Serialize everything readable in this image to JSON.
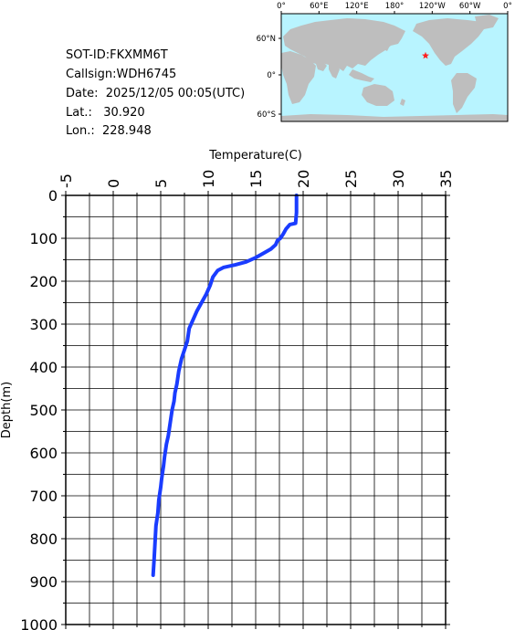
{
  "info": {
    "sot_id": "SOT-ID:FKXMM6T",
    "callsign": "Callsign:WDH6745",
    "date": "Date:  2025/12/05 00:05(UTC)",
    "lat": "Lat.:   30.920",
    "lon": "Lon.:  228.948"
  },
  "map": {
    "top_labels": [
      "0°",
      "60°E",
      "120°E",
      "180°",
      "120°W",
      "60°W",
      "0°"
    ],
    "left_labels": [
      "60°N",
      "0°",
      "60°S"
    ],
    "ocean_color": "#b8f4ff",
    "land_color": "#bebebe",
    "marker_color": "#ff2020",
    "marker_icon": "star-icon"
  },
  "chart_data": {
    "type": "line",
    "xlabel": "Temperature(C)",
    "ylabel": "Depth(m)",
    "xlim": [
      -5,
      35
    ],
    "ylim": [
      1000,
      0
    ],
    "x_ticks": [
      "-5",
      "0",
      "5",
      "10",
      "15",
      "20",
      "25",
      "30",
      "35"
    ],
    "y_ticks": [
      "0",
      "100",
      "200",
      "300",
      "400",
      "500",
      "600",
      "700",
      "800",
      "900",
      "1000"
    ],
    "grid": true,
    "line_color": "#1a3cff",
    "series": [
      {
        "x": [
          19.3,
          19.3,
          19.2,
          18.6,
          18.2,
          17.9,
          17.6,
          17.3,
          17.1,
          16.6,
          15.8,
          15.0,
          14.0,
          12.8,
          11.6,
          11.0,
          10.5,
          10.2,
          9.8,
          9.3,
          8.8,
          8.4,
          8.0,
          7.8,
          7.5,
          7.2,
          6.9,
          6.7,
          6.5,
          6.4,
          6.2,
          6.0,
          5.8,
          5.6,
          5.4,
          5.3,
          5.1,
          5.0,
          4.8,
          4.7,
          4.5,
          4.4,
          4.3,
          4.2
        ],
        "y": [
          0,
          40,
          65,
          68,
          78,
          90,
          100,
          105,
          115,
          125,
          135,
          145,
          155,
          162,
          168,
          175,
          190,
          210,
          230,
          250,
          270,
          290,
          310,
          340,
          360,
          380,
          410,
          440,
          460,
          480,
          500,
          530,
          560,
          580,
          610,
          630,
          660,
          680,
          710,
          740,
          770,
          810,
          850,
          885
        ]
      }
    ]
  }
}
